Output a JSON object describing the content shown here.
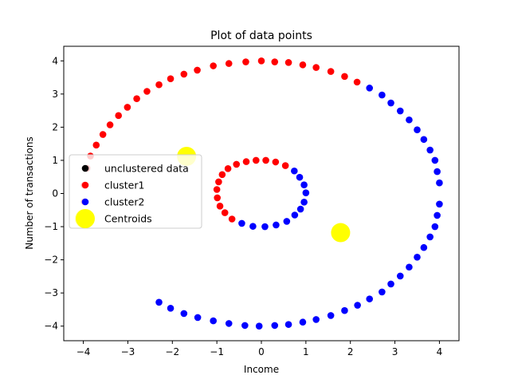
{
  "chart_data": {
    "type": "scatter",
    "title": "Plot of data points",
    "xlabel": "Income",
    "ylabel": "Number of transactions",
    "xlim": [
      -4.44,
      4.44
    ],
    "ylim": [
      -4.44,
      4.44
    ],
    "xticks": [
      -4,
      -3,
      -2,
      -1,
      0,
      1,
      2,
      3,
      4
    ],
    "yticks": [
      -4,
      -3,
      -2,
      -1,
      0,
      1,
      2,
      3,
      4
    ],
    "grid": false,
    "legend_position": "center-left",
    "series": [
      {
        "name": "unclustered data",
        "color": "#000000",
        "points": []
      },
      {
        "name": "cluster1",
        "color": "#ff0000",
        "points": [
          [
            -4.0,
            -0.76
          ],
          [
            -3.98,
            -0.25
          ],
          [
            -3.98,
            0.25
          ],
          [
            -3.92,
            0.76
          ],
          [
            -3.84,
            1.13
          ],
          [
            -3.71,
            1.46
          ],
          [
            -3.56,
            1.78
          ],
          [
            -3.4,
            2.07
          ],
          [
            -3.21,
            2.35
          ],
          [
            -3.01,
            2.6
          ],
          [
            -2.8,
            2.86
          ],
          [
            -2.57,
            3.08
          ],
          [
            -2.3,
            3.28
          ],
          [
            -2.04,
            3.46
          ],
          [
            -1.74,
            3.6
          ],
          [
            -1.44,
            3.72
          ],
          [
            -1.08,
            3.85
          ],
          [
            -0.73,
            3.92
          ],
          [
            -0.35,
            3.97
          ],
          [
            0.0,
            4.0
          ],
          [
            0.3,
            3.97
          ],
          [
            0.61,
            3.95
          ],
          [
            0.93,
            3.88
          ],
          [
            1.23,
            3.8
          ],
          [
            1.56,
            3.68
          ],
          [
            1.87,
            3.53
          ],
          [
            2.15,
            3.36
          ],
          [
            -1.0,
            0.12
          ],
          [
            -0.96,
            0.35
          ],
          [
            -0.88,
            0.57
          ],
          [
            -0.75,
            0.75
          ],
          [
            -0.56,
            0.88
          ],
          [
            -0.34,
            0.96
          ],
          [
            -0.12,
            1.0
          ],
          [
            0.1,
            1.0
          ],
          [
            0.32,
            0.95
          ],
          [
            0.54,
            0.84
          ],
          [
            -0.99,
            -0.13
          ],
          [
            -0.93,
            -0.38
          ],
          [
            -0.82,
            -0.58
          ],
          [
            -0.66,
            -0.77
          ]
        ]
      },
      {
        "name": "cluster2",
        "color": "#0000ff",
        "points": [
          [
            2.43,
            3.18
          ],
          [
            2.71,
            2.97
          ],
          [
            2.91,
            2.73
          ],
          [
            3.12,
            2.49
          ],
          [
            3.32,
            2.22
          ],
          [
            3.5,
            1.92
          ],
          [
            3.65,
            1.63
          ],
          [
            3.79,
            1.31
          ],
          [
            3.9,
            1.0
          ],
          [
            3.95,
            0.66
          ],
          [
            4.0,
            0.32
          ],
          [
            4.0,
            -0.32
          ],
          [
            3.95,
            -0.66
          ],
          [
            3.9,
            -1.0
          ],
          [
            3.79,
            -1.31
          ],
          [
            3.65,
            -1.63
          ],
          [
            3.5,
            -1.92
          ],
          [
            3.32,
            -2.22
          ],
          [
            3.12,
            -2.49
          ],
          [
            2.91,
            -2.73
          ],
          [
            2.71,
            -2.97
          ],
          [
            2.43,
            -3.18
          ],
          [
            2.16,
            -3.37
          ],
          [
            1.87,
            -3.53
          ],
          [
            1.56,
            -3.68
          ],
          [
            1.23,
            -3.8
          ],
          [
            0.93,
            -3.88
          ],
          [
            0.61,
            -3.95
          ],
          [
            0.3,
            -3.98
          ],
          [
            -0.05,
            -4.0
          ],
          [
            -0.37,
            -3.98
          ],
          [
            -0.73,
            -3.92
          ],
          [
            -1.08,
            -3.84
          ],
          [
            -1.43,
            -3.74
          ],
          [
            -1.74,
            -3.62
          ],
          [
            -2.04,
            -3.46
          ],
          [
            -2.3,
            -3.28
          ],
          [
            0.74,
            0.68
          ],
          [
            0.86,
            0.49
          ],
          [
            0.96,
            0.26
          ],
          [
            1.0,
            0.02
          ],
          [
            0.96,
            -0.26
          ],
          [
            0.88,
            -0.47
          ],
          [
            0.75,
            -0.65
          ],
          [
            0.57,
            -0.84
          ],
          [
            0.33,
            -0.95
          ],
          [
            0.08,
            -1.0
          ],
          [
            -0.19,
            -0.99
          ],
          [
            -0.44,
            -0.9
          ]
        ]
      },
      {
        "name": "Centroids",
        "color": "#ffff00",
        "points": [
          [
            -1.68,
            1.12
          ],
          [
            -3.98,
            -0.76
          ],
          [
            1.78,
            -1.18
          ]
        ]
      }
    ]
  }
}
